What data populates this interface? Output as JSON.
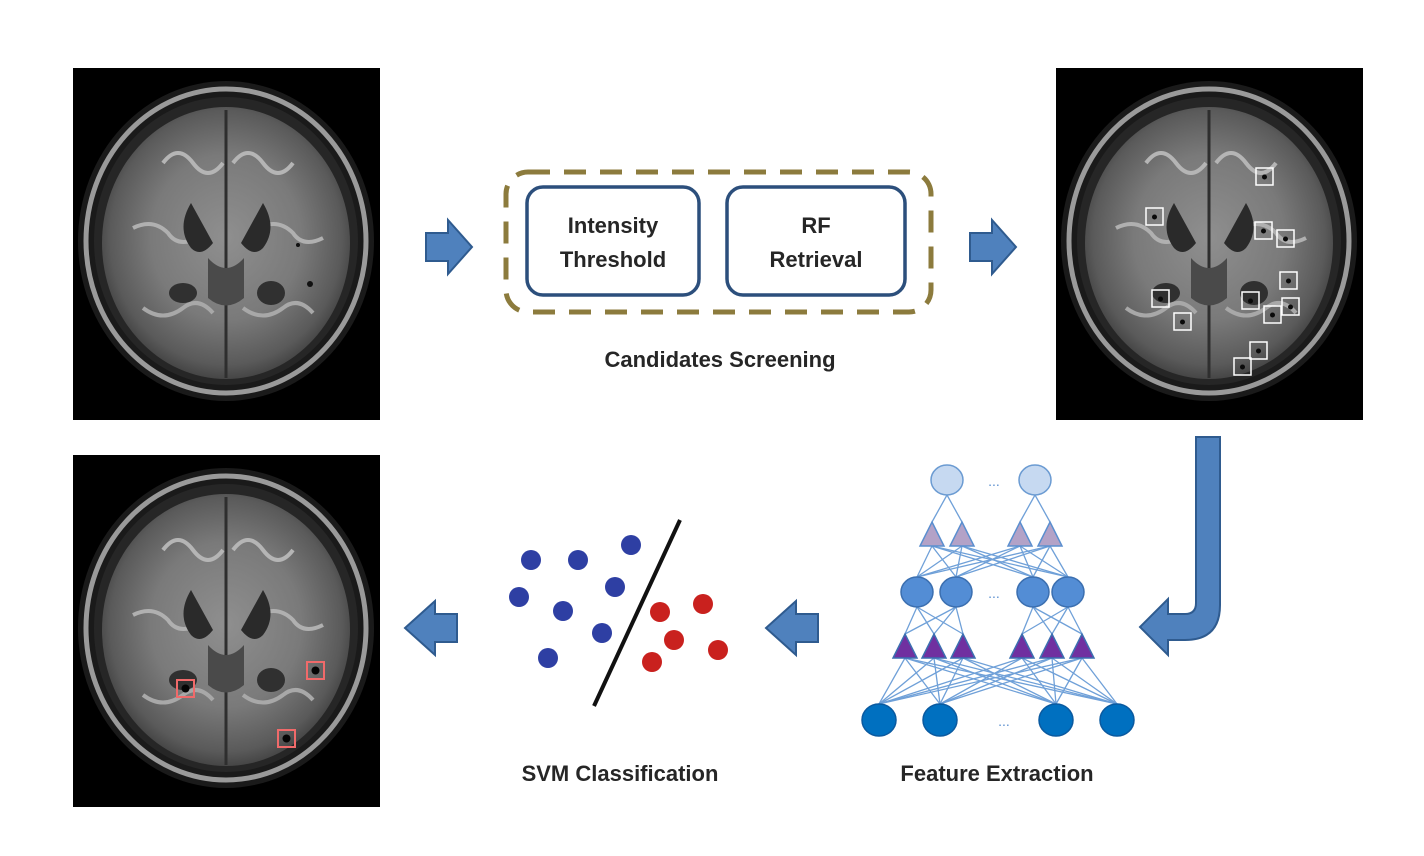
{
  "stage1": {
    "box_1": "Intensity",
    "box_1_line2": "Threshold",
    "box_2": "RF",
    "box_2_line2": "Retrieval",
    "caption": "Candidates Screening"
  },
  "stage2": {
    "caption": "Feature Extraction",
    "ellipsis": "..."
  },
  "stage3": {
    "caption": "SVM Classification"
  },
  "colors": {
    "arrow": "#4f81bd",
    "arrow_stroke": "#2f5b8f",
    "dashed_border": "#8c7b3d",
    "box_border": "#2c4f7c",
    "node_top": "#c6d9f1",
    "node_mid": "#538dd5",
    "node_bottom": "#0070c0",
    "triangle_top": "#b3a2c7",
    "triangle_mid": "#7030a0",
    "svm_class_a": "#2e3fa3",
    "svm_class_b": "#c9211e",
    "candidate_box": "#ffffff",
    "detection_box": "#f06a6a",
    "mri_bg": "#000000"
  }
}
